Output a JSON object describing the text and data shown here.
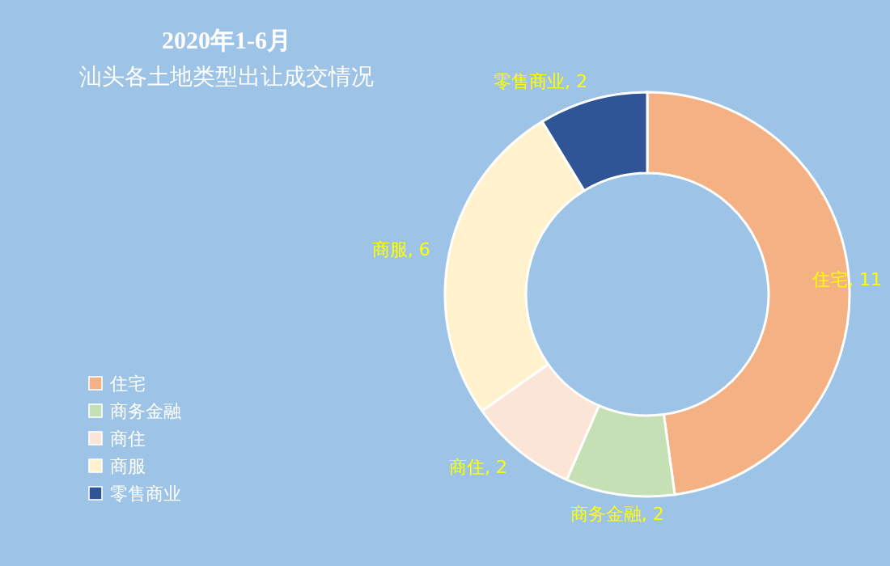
{
  "chart_data": {
    "type": "donut",
    "title": "2020年1-6月",
    "subtitle": "汕头各土地类型出让成交情况",
    "categories": [
      "住宅",
      "商务金融",
      "商住",
      "商服",
      "零售商业"
    ],
    "values": [
      11,
      2,
      2,
      6,
      2
    ],
    "colors": [
      "#f4b183",
      "#c5e0b4",
      "#fbe5d6",
      "#fff2cc",
      "#2f5597"
    ],
    "value_labels": [
      "住宅, 11",
      "商务金融, 2",
      "商住, 2",
      "商服, 6",
      "零售商业, 2"
    ],
    "legend": "bottom left"
  }
}
